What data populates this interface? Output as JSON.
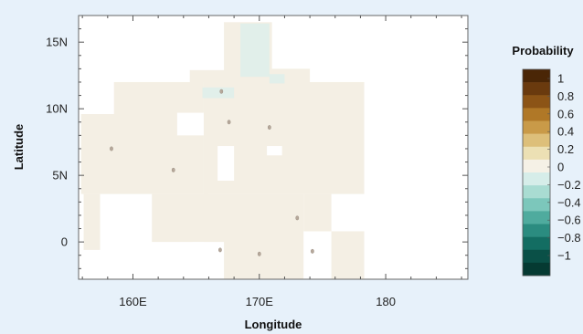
{
  "chart_data": {
    "type": "heatmap",
    "title": "",
    "xlabel": "Longitude",
    "ylabel": "Latitude",
    "xlim": [
      155.7,
      186.5
    ],
    "ylim": [
      -2.8,
      17
    ],
    "x_ticks": [
      {
        "value": 160,
        "label": "160E"
      },
      {
        "value": 170,
        "label": "170E"
      },
      {
        "value": 180,
        "label": "180"
      }
    ],
    "y_ticks": [
      {
        "value": 15,
        "label": "15N"
      },
      {
        "value": 10,
        "label": "10N"
      },
      {
        "value": 5,
        "label": "5N"
      },
      {
        "value": 0,
        "label": "0"
      }
    ],
    "colorbar": {
      "title": "Probability",
      "levels": [
        1,
        0.8,
        0.6,
        0.4,
        0.2,
        0,
        -0.2,
        -0.4,
        -0.6,
        -0.8,
        -1
      ],
      "labels": [
        "1",
        "0.8",
        "0.6",
        "0.4",
        "0.2",
        "0",
        "−0.2",
        "−0.4",
        "−0.6",
        "−0.8",
        "−1"
      ],
      "colors": [
        "#4a2606",
        "#6a3a0e",
        "#8c5416",
        "#b07827",
        "#c99a48",
        "#ddbf7a",
        "#ece0b4",
        "#f5f1e6",
        "#d6ede9",
        "#a9dcd2",
        "#7cc7bb",
        "#4fab9e",
        "#2b8c80",
        "#136d62",
        "#0a5047",
        "#053a32"
      ]
    },
    "regions": [
      {
        "lon": [
          155.9,
          186.5
        ],
        "lat": [
          -2.8,
          17
        ],
        "value": 0
      }
    ],
    "cells_positive": [
      {
        "lon": [
          155.9,
          178.3
        ],
        "lat": [
          -2.8,
          9.5
        ],
        "value": 0.02
      }
    ],
    "cells_negative": [
      {
        "lon": [
          164.5,
          168.5
        ],
        "lat": [
          9.5,
          12
        ],
        "value": -0.05
      }
    ]
  }
}
